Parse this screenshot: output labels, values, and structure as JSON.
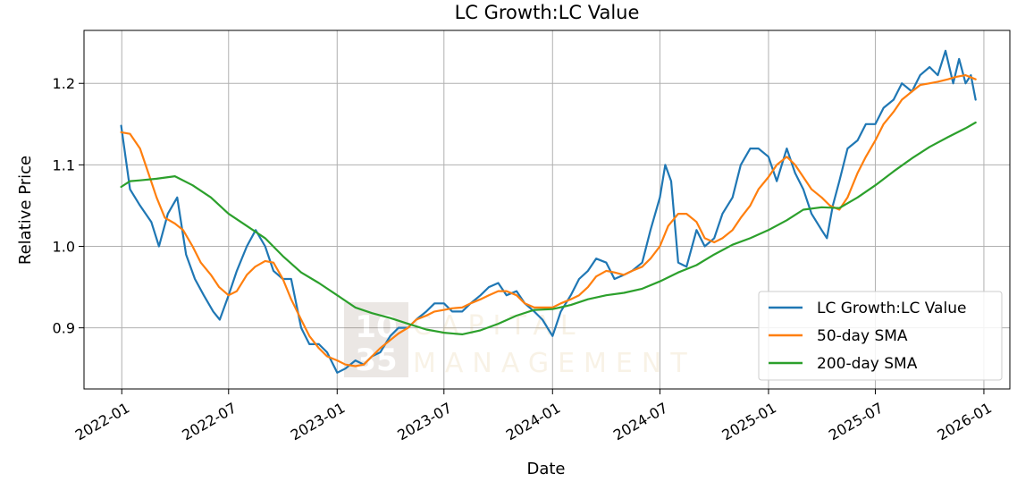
{
  "chart_data": {
    "type": "line",
    "title": "LC Growth:LC Value",
    "xlabel": "Date",
    "ylabel": "Relative Price",
    "grid": true,
    "legend_position": "lower-right",
    "xlim": [
      "2021-10-29",
      "2026-02-14"
    ],
    "ylim": [
      0.825,
      1.265
    ],
    "x_ticks": [
      "2022-01",
      "2022-07",
      "2023-01",
      "2023-07",
      "2024-01",
      "2024-07",
      "2025-01",
      "2025-07",
      "2026-01"
    ],
    "y_ticks": [
      0.9,
      1.0,
      1.1,
      1.2
    ],
    "y_tick_labels": [
      "0.9",
      "1.0",
      "1.1",
      "1.2"
    ],
    "series": [
      {
        "name": "LC Growth:LC Value",
        "color": "#1f77b4",
        "x": [
          "2021-12-31",
          "2022-01-15",
          "2022-02-01",
          "2022-02-20",
          "2022-03-05",
          "2022-03-20",
          "2022-04-05",
          "2022-04-20",
          "2022-05-05",
          "2022-05-20",
          "2022-06-05",
          "2022-06-16",
          "2022-07-01",
          "2022-07-15",
          "2022-08-01",
          "2022-08-16",
          "2022-09-01",
          "2022-09-15",
          "2022-10-01",
          "2022-10-15",
          "2022-11-01",
          "2022-11-15",
          "2022-12-01",
          "2022-12-15",
          "2023-01-01",
          "2023-01-15",
          "2023-02-01",
          "2023-02-15",
          "2023-03-01",
          "2023-03-15",
          "2023-04-01",
          "2023-04-15",
          "2023-05-01",
          "2023-05-15",
          "2023-06-01",
          "2023-06-15",
          "2023-07-01",
          "2023-07-15",
          "2023-08-01",
          "2023-08-15",
          "2023-09-01",
          "2023-09-15",
          "2023-10-01",
          "2023-10-15",
          "2023-11-01",
          "2023-11-15",
          "2023-12-01",
          "2023-12-15",
          "2024-01-01",
          "2024-01-15",
          "2024-02-01",
          "2024-02-15",
          "2024-03-01",
          "2024-03-15",
          "2024-04-01",
          "2024-04-15",
          "2024-05-01",
          "2024-05-15",
          "2024-06-01",
          "2024-06-15",
          "2024-07-01",
          "2024-07-10",
          "2024-07-20",
          "2024-08-01",
          "2024-08-15",
          "2024-09-01",
          "2024-09-15",
          "2024-10-01",
          "2024-10-15",
          "2024-11-01",
          "2024-11-15",
          "2024-12-01",
          "2024-12-15",
          "2025-01-01",
          "2025-01-15",
          "2025-02-01",
          "2025-02-15",
          "2025-03-01",
          "2025-03-15",
          "2025-04-01",
          "2025-04-10",
          "2025-04-20",
          "2025-05-01",
          "2025-05-15",
          "2025-06-01",
          "2025-06-15",
          "2025-07-01",
          "2025-07-15",
          "2025-08-01",
          "2025-08-15",
          "2025-09-01",
          "2025-09-15",
          "2025-10-01",
          "2025-10-15",
          "2025-10-28",
          "2025-11-10",
          "2025-11-20",
          "2025-12-01",
          "2025-12-10",
          "2025-12-18"
        ],
        "values": [
          1.148,
          1.07,
          1.05,
          1.03,
          1.0,
          1.04,
          1.06,
          0.99,
          0.96,
          0.94,
          0.92,
          0.91,
          0.94,
          0.97,
          1.0,
          1.02,
          1.0,
          0.97,
          0.96,
          0.96,
          0.9,
          0.88,
          0.88,
          0.87,
          0.845,
          0.85,
          0.86,
          0.855,
          0.865,
          0.87,
          0.89,
          0.9,
          0.9,
          0.91,
          0.92,
          0.93,
          0.93,
          0.92,
          0.92,
          0.93,
          0.94,
          0.95,
          0.955,
          0.94,
          0.945,
          0.93,
          0.92,
          0.91,
          0.89,
          0.92,
          0.94,
          0.96,
          0.97,
          0.985,
          0.98,
          0.96,
          0.965,
          0.97,
          0.98,
          1.02,
          1.06,
          1.1,
          1.08,
          0.98,
          0.975,
          1.02,
          1.0,
          1.01,
          1.04,
          1.06,
          1.1,
          1.12,
          1.12,
          1.11,
          1.08,
          1.12,
          1.09,
          1.07,
          1.04,
          1.02,
          1.01,
          1.05,
          1.08,
          1.12,
          1.13,
          1.15,
          1.15,
          1.17,
          1.18,
          1.2,
          1.19,
          1.21,
          1.22,
          1.21,
          1.24,
          1.2,
          1.23,
          1.2,
          1.21,
          1.18
        ]
      },
      {
        "name": "50-day SMA",
        "color": "#ff7f0e",
        "x": [
          "2021-12-31",
          "2022-01-15",
          "2022-02-01",
          "2022-02-15",
          "2022-03-01",
          "2022-03-15",
          "2022-04-01",
          "2022-04-15",
          "2022-05-01",
          "2022-05-15",
          "2022-06-01",
          "2022-06-15",
          "2022-07-01",
          "2022-07-15",
          "2022-08-01",
          "2022-08-15",
          "2022-09-01",
          "2022-09-15",
          "2022-10-01",
          "2022-10-15",
          "2022-11-01",
          "2022-11-15",
          "2022-12-01",
          "2022-12-15",
          "2023-01-01",
          "2023-01-15",
          "2023-02-01",
          "2023-02-15",
          "2023-03-01",
          "2023-03-15",
          "2023-04-01",
          "2023-04-15",
          "2023-05-01",
          "2023-05-15",
          "2023-06-01",
          "2023-06-15",
          "2023-07-01",
          "2023-07-15",
          "2023-08-01",
          "2023-08-15",
          "2023-09-01",
          "2023-09-15",
          "2023-10-01",
          "2023-10-15",
          "2023-11-01",
          "2023-11-15",
          "2023-12-01",
          "2023-12-15",
          "2024-01-01",
          "2024-01-15",
          "2024-02-01",
          "2024-02-15",
          "2024-03-01",
          "2024-03-15",
          "2024-04-01",
          "2024-04-15",
          "2024-05-01",
          "2024-05-15",
          "2024-06-01",
          "2024-06-15",
          "2024-07-01",
          "2024-07-15",
          "2024-08-01",
          "2024-08-15",
          "2024-09-01",
          "2024-09-15",
          "2024-10-01",
          "2024-10-15",
          "2024-11-01",
          "2024-11-15",
          "2024-12-01",
          "2024-12-15",
          "2025-01-01",
          "2025-01-15",
          "2025-02-01",
          "2025-02-15",
          "2025-03-01",
          "2025-03-15",
          "2025-04-01",
          "2025-04-15",
          "2025-05-01",
          "2025-05-15",
          "2025-06-01",
          "2025-06-15",
          "2025-07-01",
          "2025-07-15",
          "2025-08-01",
          "2025-08-15",
          "2025-09-01",
          "2025-09-15",
          "2025-10-01",
          "2025-10-15",
          "2025-11-01",
          "2025-11-15",
          "2025-12-01",
          "2025-12-18"
        ],
        "values": [
          1.14,
          1.138,
          1.12,
          1.09,
          1.06,
          1.035,
          1.028,
          1.02,
          1.0,
          0.98,
          0.965,
          0.95,
          0.94,
          0.945,
          0.965,
          0.975,
          0.982,
          0.98,
          0.96,
          0.935,
          0.91,
          0.89,
          0.875,
          0.865,
          0.86,
          0.855,
          0.853,
          0.855,
          0.865,
          0.875,
          0.885,
          0.893,
          0.9,
          0.91,
          0.915,
          0.92,
          0.922,
          0.924,
          0.925,
          0.93,
          0.935,
          0.94,
          0.945,
          0.945,
          0.94,
          0.93,
          0.925,
          0.925,
          0.925,
          0.93,
          0.935,
          0.94,
          0.95,
          0.963,
          0.97,
          0.968,
          0.965,
          0.97,
          0.975,
          0.985,
          1.0,
          1.025,
          1.04,
          1.04,
          1.03,
          1.01,
          1.005,
          1.01,
          1.02,
          1.035,
          1.05,
          1.07,
          1.085,
          1.1,
          1.11,
          1.1,
          1.085,
          1.07,
          1.06,
          1.05,
          1.045,
          1.06,
          1.09,
          1.11,
          1.13,
          1.15,
          1.165,
          1.18,
          1.19,
          1.198,
          1.2,
          1.202,
          1.205,
          1.208,
          1.21,
          1.205
        ]
      },
      {
        "name": "200-day SMA",
        "color": "#2ca02c",
        "x": [
          "2021-12-31",
          "2022-01-15",
          "2022-02-01",
          "2022-03-01",
          "2022-04-01",
          "2022-05-01",
          "2022-06-01",
          "2022-07-01",
          "2022-08-01",
          "2022-09-01",
          "2022-10-01",
          "2022-11-01",
          "2022-12-01",
          "2023-01-01",
          "2023-02-01",
          "2023-03-01",
          "2023-04-01",
          "2023-05-01",
          "2023-06-01",
          "2023-07-01",
          "2023-08-01",
          "2023-09-01",
          "2023-10-01",
          "2023-11-01",
          "2023-12-01",
          "2024-01-01",
          "2024-02-01",
          "2024-03-01",
          "2024-04-01",
          "2024-05-01",
          "2024-06-01",
          "2024-07-01",
          "2024-08-01",
          "2024-09-01",
          "2024-10-01",
          "2024-11-01",
          "2024-12-01",
          "2025-01-01",
          "2025-02-01",
          "2025-03-01",
          "2025-04-01",
          "2025-05-01",
          "2025-06-01",
          "2025-07-01",
          "2025-08-01",
          "2025-09-01",
          "2025-10-01",
          "2025-11-01",
          "2025-12-01",
          "2025-12-18"
        ],
        "values": [
          1.073,
          1.08,
          1.081,
          1.083,
          1.086,
          1.075,
          1.06,
          1.04,
          1.025,
          1.01,
          0.988,
          0.968,
          0.955,
          0.94,
          0.925,
          0.918,
          0.912,
          0.905,
          0.898,
          0.894,
          0.892,
          0.897,
          0.905,
          0.915,
          0.922,
          0.923,
          0.928,
          0.935,
          0.94,
          0.943,
          0.948,
          0.957,
          0.968,
          0.977,
          0.99,
          1.002,
          1.01,
          1.02,
          1.032,
          1.045,
          1.048,
          1.047,
          1.06,
          1.075,
          1.092,
          1.108,
          1.122,
          1.134,
          1.145,
          1.152
        ]
      }
    ]
  },
  "watermark": {
    "logo_top": "10",
    "logo_bottom": "35",
    "line1": "CAPITAL",
    "line2": "MANAGEMENT"
  }
}
